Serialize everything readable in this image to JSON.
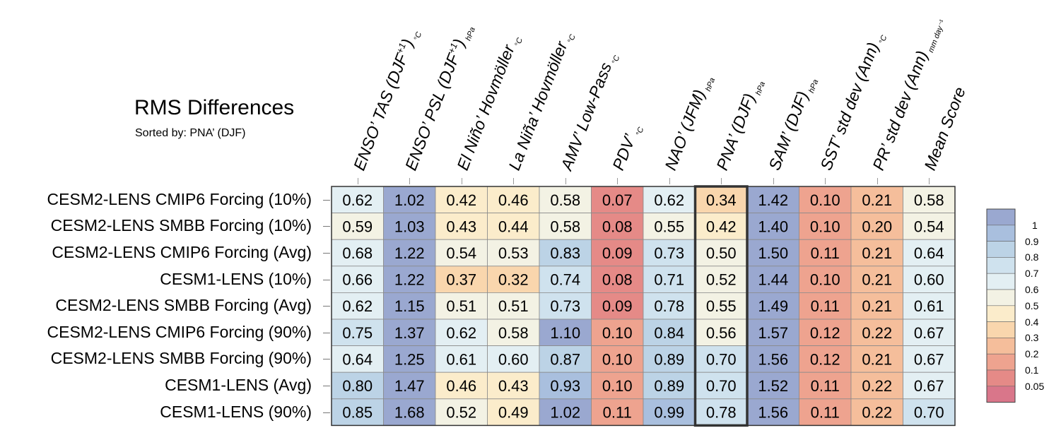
{
  "chart_data": {
    "type": "heatmap",
    "title": "RMS Differences",
    "subtitle": "Sorted by: PNA’ (DJF)",
    "columns": [
      {
        "label": "ENSO’ TAS (DJF",
        "sup": "+1",
        "close": ")",
        "unit": "°C"
      },
      {
        "label": "ENSO’ PSL (DJF",
        "sup": "+1",
        "close": ")",
        "unit": "hPa"
      },
      {
        "label": "El Niño’ Hovmöller",
        "sup": "",
        "close": "",
        "unit": "°C"
      },
      {
        "label": "La Niña’ Hovmöller",
        "sup": "",
        "close": "",
        "unit": "°C"
      },
      {
        "label": "AMV’ Low-Pass",
        "sup": "",
        "close": "",
        "unit": "°C"
      },
      {
        "label": "PDV’",
        "sup": "",
        "close": "",
        "unit": "°C"
      },
      {
        "label": "NAO’ (JFM)",
        "sup": "",
        "close": "",
        "unit": "hPa"
      },
      {
        "label": "PNA’ (DJF)",
        "sup": "",
        "close": "",
        "unit": "hPa"
      },
      {
        "label": "SAM’ (DJF)",
        "sup": "",
        "close": "",
        "unit": "hPa"
      },
      {
        "label": "SST’ std dev (Ann)",
        "sup": "",
        "close": "",
        "unit": "°C"
      },
      {
        "label": "PR’ std dev (Ann)",
        "sup": "",
        "close": "",
        "unit": "mm day⁻¹"
      },
      {
        "label": "Mean Score",
        "sup": "",
        "close": "",
        "unit": ""
      }
    ],
    "rows": [
      "CESM2-LENS CMIP6 Forcing (10%)",
      "CESM2-LENS SMBB Forcing (10%)",
      "CESM2-LENS CMIP6 Forcing (Avg)",
      "CESM1-LENS (10%)",
      "CESM2-LENS SMBB Forcing (Avg)",
      "CESM2-LENS CMIP6 Forcing (90%)",
      "CESM2-LENS SMBB Forcing (90%)",
      "CESM1-LENS (Avg)",
      "CESM1-LENS (90%)"
    ],
    "values": [
      [
        "0.62",
        "1.02",
        "0.42",
        "0.46",
        "0.58",
        "0.07",
        "0.62",
        "0.34",
        "1.42",
        "0.10",
        "0.21",
        "0.58"
      ],
      [
        "0.59",
        "1.03",
        "0.43",
        "0.44",
        "0.58",
        "0.08",
        "0.55",
        "0.42",
        "1.40",
        "0.10",
        "0.20",
        "0.54"
      ],
      [
        "0.68",
        "1.22",
        "0.54",
        "0.53",
        "0.83",
        "0.09",
        "0.73",
        "0.50",
        "1.50",
        "0.11",
        "0.21",
        "0.64"
      ],
      [
        "0.66",
        "1.22",
        "0.37",
        "0.32",
        "0.74",
        "0.08",
        "0.71",
        "0.52",
        "1.44",
        "0.10",
        "0.21",
        "0.60"
      ],
      [
        "0.62",
        "1.15",
        "0.51",
        "0.51",
        "0.73",
        "0.09",
        "0.78",
        "0.55",
        "1.49",
        "0.11",
        "0.21",
        "0.61"
      ],
      [
        "0.75",
        "1.37",
        "0.62",
        "0.58",
        "1.10",
        "0.10",
        "0.84",
        "0.56",
        "1.57",
        "0.12",
        "0.22",
        "0.67"
      ],
      [
        "0.64",
        "1.25",
        "0.61",
        "0.60",
        "0.87",
        "0.10",
        "0.89",
        "0.70",
        "1.56",
        "0.12",
        "0.21",
        "0.67"
      ],
      [
        "0.80",
        "1.47",
        "0.46",
        "0.43",
        "0.93",
        "0.10",
        "0.89",
        "0.70",
        "1.52",
        "0.11",
        "0.22",
        "0.67"
      ],
      [
        "0.85",
        "1.68",
        "0.52",
        "0.49",
        "1.02",
        "0.11",
        "0.99",
        "0.78",
        "1.56",
        "0.11",
        "0.22",
        "0.70"
      ]
    ],
    "highlight_column": "PNA’ (DJF)",
    "colorbar": {
      "ticks": [
        "1",
        "0.9",
        "0.8",
        "0.7",
        "0.6",
        "0.5",
        "0.4",
        "0.3",
        "0.2",
        "0.1",
        "0.05"
      ],
      "colors": [
        "#9aa8d0",
        "#a9bfde",
        "#bcd3e6",
        "#cfe2ee",
        "#e3eff3",
        "#f3f2e4",
        "#fbeccb",
        "#f9d6ad",
        "#f5be9b",
        "#eea38f",
        "#e58a87",
        "#d9768a"
      ]
    }
  }
}
